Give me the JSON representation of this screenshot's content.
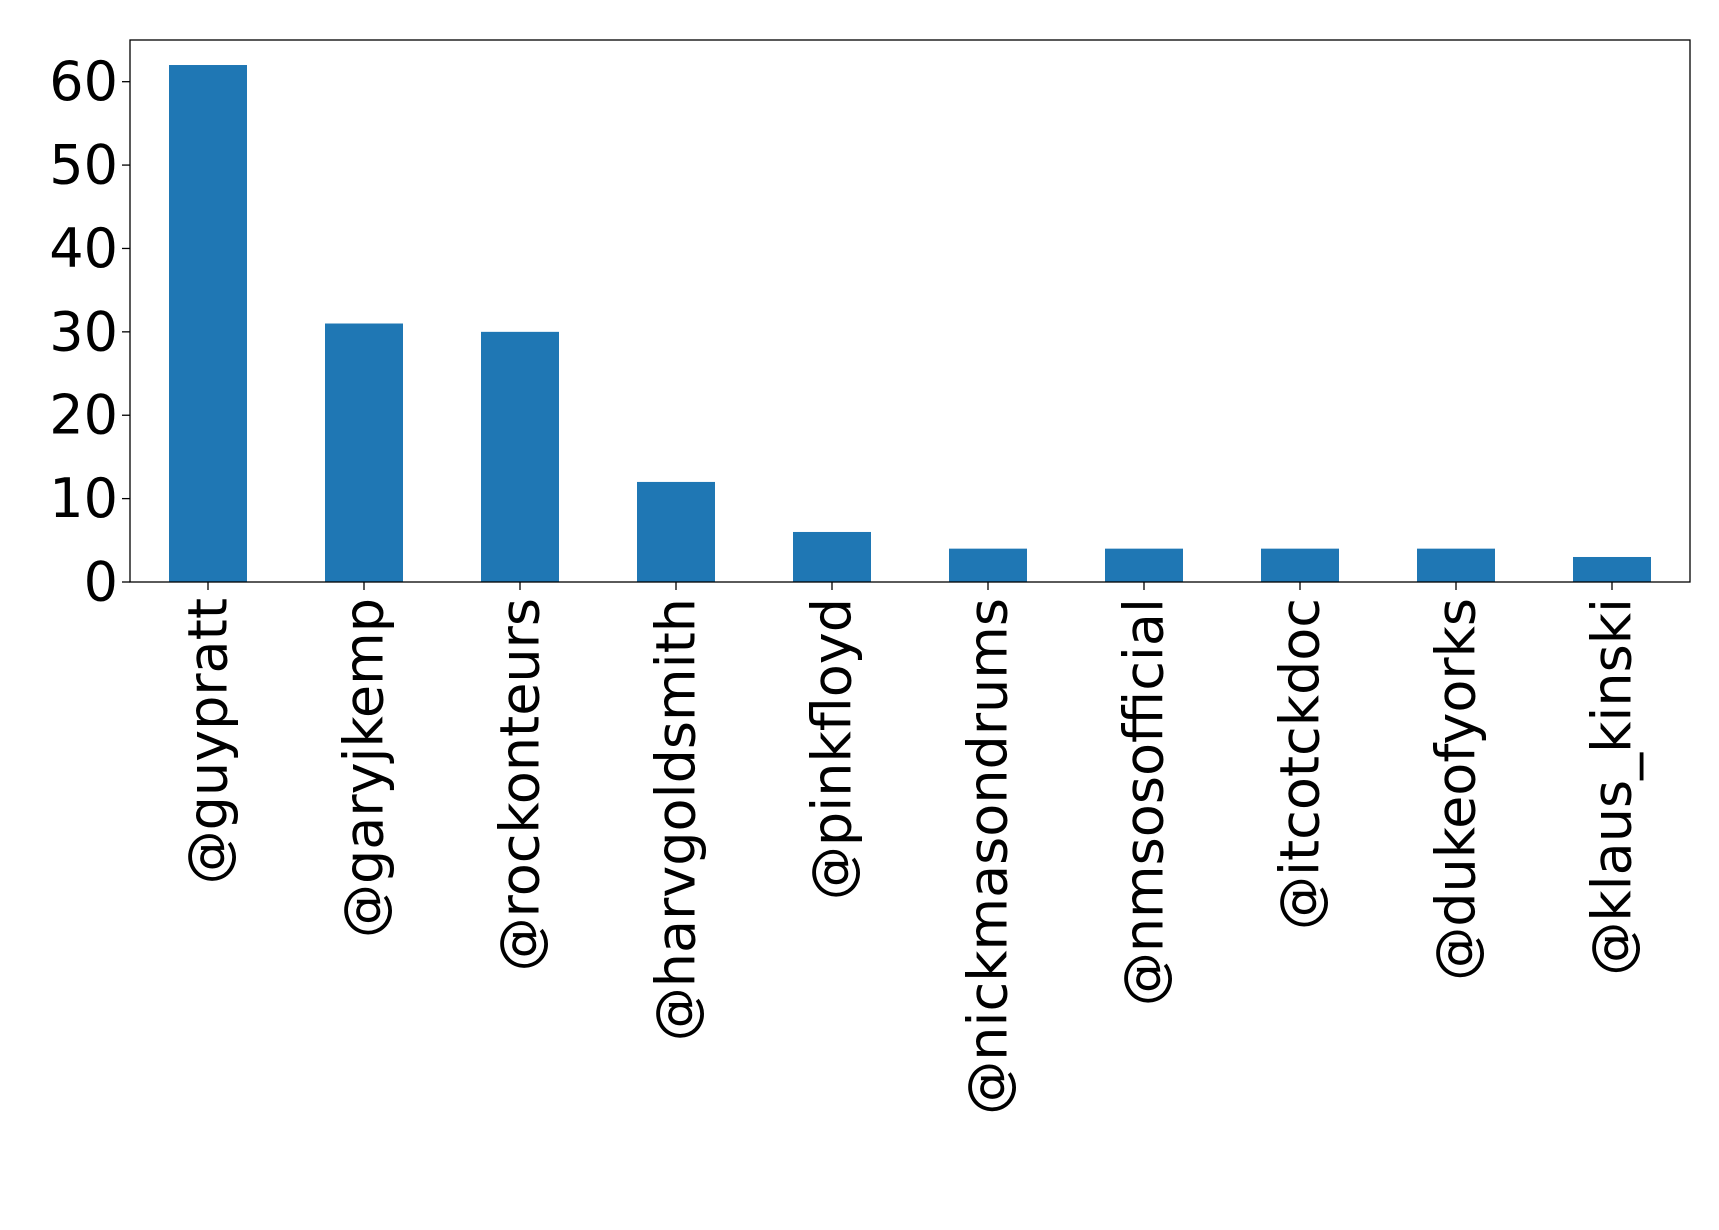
{
  "chart_data": {
    "type": "bar",
    "title": "",
    "xlabel": "",
    "ylabel": "",
    "categories": [
      "@guypratt",
      "@garyjkemp",
      "@rockonteurs",
      "@harvgoldsmith",
      "@pinkfloyd",
      "@nickmasondrums",
      "@nmsosofficial",
      "@itcotckdoc",
      "@dukeofyorks",
      "@klaus_kinski"
    ],
    "values": [
      62,
      31,
      30,
      12,
      6,
      4,
      4,
      4,
      4,
      3
    ],
    "ylim": [
      0,
      65
    ],
    "yticks": [
      0,
      10,
      20,
      30,
      40,
      50,
      60
    ],
    "ytick_labels": [
      "0",
      "10",
      "20",
      "30",
      "40",
      "50",
      "60"
    ],
    "bar_color": "#1f77b4",
    "grid": false,
    "legend": false
  }
}
